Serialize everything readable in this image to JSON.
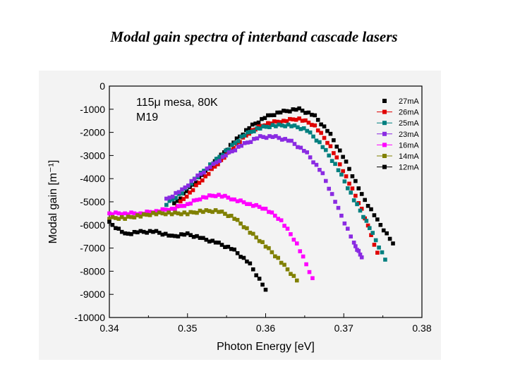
{
  "slide_title": "Modal gain spectra of interband cascade lasers",
  "chart_data": {
    "type": "scatter",
    "annotation_lines": [
      "115μ mesa, 80K",
      "M19"
    ],
    "xlabel": "Photon Energy [eV]",
    "ylabel": "Modal gain [m⁻¹]",
    "xlim": [
      0.34,
      0.38
    ],
    "ylim": [
      -10000,
      0
    ],
    "xticks": [
      0.34,
      0.35,
      0.36,
      0.37,
      0.38
    ],
    "xtick_labels": [
      "0.34",
      "0.35",
      "0.36",
      "0.37",
      "0.38"
    ],
    "yticks": [
      0,
      -1000,
      -2000,
      -3000,
      -4000,
      -5000,
      -6000,
      -7000,
      -8000,
      -9000,
      -10000
    ],
    "ytick_labels": [
      "0",
      "-1000",
      "-2000",
      "-3000",
      "-4000",
      "-5000",
      "-6000",
      "-7000",
      "-8000",
      "-9000",
      "-10000"
    ],
    "legend_position": "top-right",
    "series": [
      {
        "name": "27mA",
        "color": "#000000",
        "marker": "square",
        "x": [
          0.3483,
          0.3503,
          0.3523,
          0.3543,
          0.3563,
          0.3583,
          0.3603,
          0.3623,
          0.3643,
          0.3663,
          0.3683,
          0.3703,
          0.3723,
          0.3743,
          0.3763
        ],
        "y": [
          -5100,
          -4400,
          -3700,
          -3000,
          -2300,
          -1700,
          -1300,
          -1100,
          -1000,
          -1300,
          -2100,
          -3300,
          -4700,
          -5800,
          -6800
        ]
      },
      {
        "name": "26mA",
        "color": "#e00000",
        "marker": "square",
        "x": [
          0.3483,
          0.3503,
          0.3523,
          0.3543,
          0.3563,
          0.3583,
          0.3603,
          0.3623,
          0.3643,
          0.3663,
          0.3683,
          0.3703,
          0.3723,
          0.3743
        ],
        "y": [
          -5300,
          -4600,
          -3900,
          -3200,
          -2500,
          -1900,
          -1600,
          -1500,
          -1400,
          -1700,
          -2600,
          -3900,
          -5300,
          -7200
        ]
      },
      {
        "name": "25mA",
        "color": "#007f7f",
        "marker": "square",
        "x": [
          0.3473,
          0.3493,
          0.3513,
          0.3533,
          0.3553,
          0.3573,
          0.3593,
          0.3613,
          0.3633,
          0.3653,
          0.3673,
          0.3693,
          0.3713,
          0.3733,
          0.3753
        ],
        "y": [
          -5100,
          -4600,
          -3900,
          -3300,
          -2700,
          -2100,
          -1800,
          -1700,
          -1700,
          -1900,
          -2600,
          -3600,
          -4900,
          -6100,
          -7500
        ]
      },
      {
        "name": "23mA",
        "color": "#8a2be2",
        "marker": "square",
        "x": [
          0.3473,
          0.3493,
          0.3513,
          0.3533,
          0.3553,
          0.3573,
          0.3593,
          0.3613,
          0.3633,
          0.3653,
          0.3673,
          0.3693,
          0.3713,
          0.3723
        ],
        "y": [
          -4900,
          -4500,
          -3900,
          -3400,
          -2900,
          -2500,
          -2200,
          -2200,
          -2400,
          -2900,
          -3800,
          -5300,
          -6800,
          -7400
        ]
      },
      {
        "name": "16mA",
        "color": "#ff00ff",
        "marker": "square",
        "x": [
          0.34,
          0.342,
          0.344,
          0.346,
          0.348,
          0.35,
          0.352,
          0.354,
          0.356,
          0.358,
          0.36,
          0.362,
          0.364,
          0.366
        ],
        "y": [
          -5500,
          -5500,
          -5500,
          -5400,
          -5300,
          -5100,
          -4800,
          -4700,
          -4900,
          -5100,
          -5300,
          -5800,
          -6800,
          -8300
        ]
      },
      {
        "name": "14mA",
        "color": "#808000",
        "marker": "square",
        "x": [
          0.34,
          0.342,
          0.344,
          0.346,
          0.348,
          0.35,
          0.352,
          0.354,
          0.356,
          0.358,
          0.36,
          0.362,
          0.364
        ],
        "y": [
          -5700,
          -5700,
          -5600,
          -5500,
          -5500,
          -5500,
          -5400,
          -5400,
          -5700,
          -6300,
          -6900,
          -7600,
          -8400
        ]
      },
      {
        "name": "12mA",
        "color": "#000000",
        "marker": "square",
        "x": [
          0.34,
          0.342,
          0.344,
          0.346,
          0.348,
          0.35,
          0.352,
          0.354,
          0.356,
          0.358,
          0.36
        ],
        "y": [
          -5900,
          -6400,
          -6300,
          -6300,
          -6500,
          -6400,
          -6600,
          -6800,
          -7100,
          -7700,
          -8800
        ]
      }
    ]
  }
}
